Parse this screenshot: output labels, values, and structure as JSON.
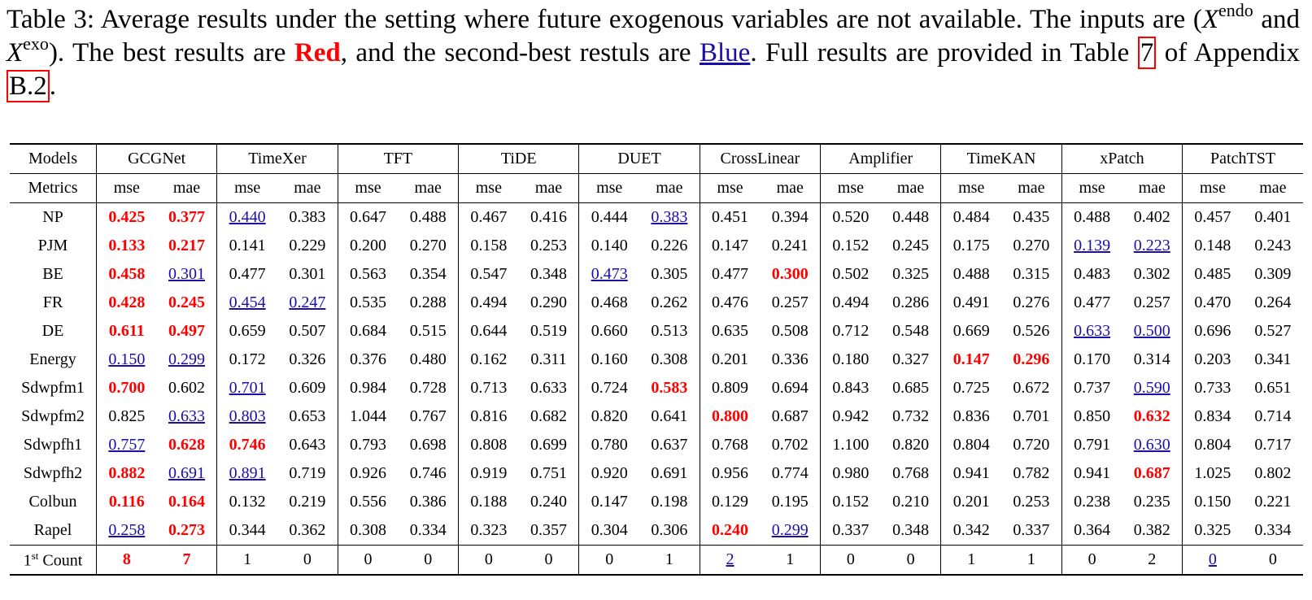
{
  "caption": {
    "part1": "Table 3: Average results under the setting where future exogenous variables are not available. The inputs are (",
    "x_symbol_1": "X",
    "sup_endo": "endo",
    "and_text": " and ",
    "x_symbol_2": "X",
    "sup_exo": "exo",
    "part2": "). The best results are ",
    "red_word": "Red",
    "part3": ", and the second-best restuls are ",
    "blue_word": "Blue",
    "part4": ". Full results are provided in Table ",
    "table_ref": "7",
    "part5": " of Appendix ",
    "appendix_ref": "B.2",
    "part6": "."
  },
  "table": {
    "models_label": "Models",
    "metrics_label": "Metrics",
    "metric_mse": "mse",
    "metric_mae": "mae",
    "models": [
      "GCGNet",
      "TimeXer",
      "TFT",
      "TiDE",
      "DUET",
      "CrossLinear",
      "Amplifier",
      "TimeKAN",
      "xPatch",
      "PatchTST"
    ],
    "rows": [
      {
        "name": "NP",
        "values": [
          "0.425",
          "0.377",
          "0.440",
          "0.383",
          "0.647",
          "0.488",
          "0.467",
          "0.416",
          "0.444",
          "0.383",
          "0.451",
          "0.394",
          "0.520",
          "0.448",
          "0.484",
          "0.435",
          "0.488",
          "0.402",
          "0.457",
          "0.401"
        ],
        "marks": "11200000020000000000"
      },
      {
        "name": "PJM",
        "values": [
          "0.133",
          "0.217",
          "0.141",
          "0.229",
          "0.200",
          "0.270",
          "0.158",
          "0.253",
          "0.140",
          "0.226",
          "0.147",
          "0.241",
          "0.152",
          "0.245",
          "0.175",
          "0.270",
          "0.139",
          "0.223",
          "0.148",
          "0.243"
        ],
        "marks": "11000000000000002200"
      },
      {
        "name": "BE",
        "values": [
          "0.458",
          "0.301",
          "0.477",
          "0.301",
          "0.563",
          "0.354",
          "0.547",
          "0.348",
          "0.473",
          "0.305",
          "0.477",
          "0.300",
          "0.502",
          "0.325",
          "0.488",
          "0.315",
          "0.483",
          "0.302",
          "0.485",
          "0.309"
        ],
        "marks": "12000000200100000000"
      },
      {
        "name": "FR",
        "values": [
          "0.428",
          "0.245",
          "0.454",
          "0.247",
          "0.535",
          "0.288",
          "0.494",
          "0.290",
          "0.468",
          "0.262",
          "0.476",
          "0.257",
          "0.494",
          "0.286",
          "0.491",
          "0.276",
          "0.477",
          "0.257",
          "0.470",
          "0.264"
        ],
        "marks": "11220000000000000000"
      },
      {
        "name": "DE",
        "values": [
          "0.611",
          "0.497",
          "0.659",
          "0.507",
          "0.684",
          "0.515",
          "0.644",
          "0.519",
          "0.660",
          "0.513",
          "0.635",
          "0.508",
          "0.712",
          "0.548",
          "0.669",
          "0.526",
          "0.633",
          "0.500",
          "0.696",
          "0.527"
        ],
        "marks": "11000000000000002200"
      },
      {
        "name": "Energy",
        "values": [
          "0.150",
          "0.299",
          "0.172",
          "0.326",
          "0.376",
          "0.480",
          "0.162",
          "0.311",
          "0.160",
          "0.308",
          "0.201",
          "0.336",
          "0.180",
          "0.327",
          "0.147",
          "0.296",
          "0.170",
          "0.314",
          "0.203",
          "0.341"
        ],
        "marks": "22000000000000110000"
      },
      {
        "name": "Sdwpfm1",
        "values": [
          "0.700",
          "0.602",
          "0.701",
          "0.609",
          "0.984",
          "0.728",
          "0.713",
          "0.633",
          "0.724",
          "0.583",
          "0.809",
          "0.694",
          "0.843",
          "0.685",
          "0.725",
          "0.672",
          "0.737",
          "0.590",
          "0.733",
          "0.651"
        ],
        "marks": "10200000010000000200"
      },
      {
        "name": "Sdwpfm2",
        "values": [
          "0.825",
          "0.633",
          "0.803",
          "0.653",
          "1.044",
          "0.767",
          "0.816",
          "0.682",
          "0.820",
          "0.641",
          "0.800",
          "0.687",
          "0.942",
          "0.732",
          "0.836",
          "0.701",
          "0.850",
          "0.632",
          "0.834",
          "0.714"
        ],
        "marks": "02200000001000000100"
      },
      {
        "name": "Sdwpfh1",
        "values": [
          "0.757",
          "0.628",
          "0.746",
          "0.643",
          "0.793",
          "0.698",
          "0.808",
          "0.699",
          "0.780",
          "0.637",
          "0.768",
          "0.702",
          "1.100",
          "0.820",
          "0.804",
          "0.720",
          "0.791",
          "0.630",
          "0.804",
          "0.717"
        ],
        "marks": "21100000000000000200"
      },
      {
        "name": "Sdwpfh2",
        "values": [
          "0.882",
          "0.691",
          "0.891",
          "0.719",
          "0.926",
          "0.746",
          "0.919",
          "0.751",
          "0.920",
          "0.691",
          "0.956",
          "0.774",
          "0.980",
          "0.768",
          "0.941",
          "0.782",
          "0.941",
          "0.687",
          "1.025",
          "0.802"
        ],
        "marks": "12200000000000000100"
      },
      {
        "name": "Colbun",
        "values": [
          "0.116",
          "0.164",
          "0.132",
          "0.219",
          "0.556",
          "0.386",
          "0.188",
          "0.240",
          "0.147",
          "0.198",
          "0.129",
          "0.195",
          "0.152",
          "0.210",
          "0.201",
          "0.253",
          "0.238",
          "0.235",
          "0.150",
          "0.221"
        ],
        "marks": "11000000000000000000"
      },
      {
        "name": "Rapel",
        "values": [
          "0.258",
          "0.273",
          "0.344",
          "0.362",
          "0.308",
          "0.334",
          "0.323",
          "0.357",
          "0.304",
          "0.306",
          "0.240",
          "0.299",
          "0.337",
          "0.348",
          "0.342",
          "0.337",
          "0.364",
          "0.382",
          "0.325",
          "0.334"
        ],
        "marks": "21000000001200000000"
      },
      {
        "name": "1",
        "name_sup": "st",
        "name_suffix": " Count",
        "values": [
          "8",
          "7",
          "1",
          "0",
          "0",
          "0",
          "0",
          "0",
          "0",
          "1",
          "2",
          "1",
          "0",
          "0",
          "1",
          "1",
          "0",
          "2",
          "0",
          "0"
        ],
        "marks": "11000000002000000020"
      }
    ]
  },
  "colors": {
    "best": "#ff0000",
    "second": "#1a0dab",
    "text": "#000000"
  }
}
